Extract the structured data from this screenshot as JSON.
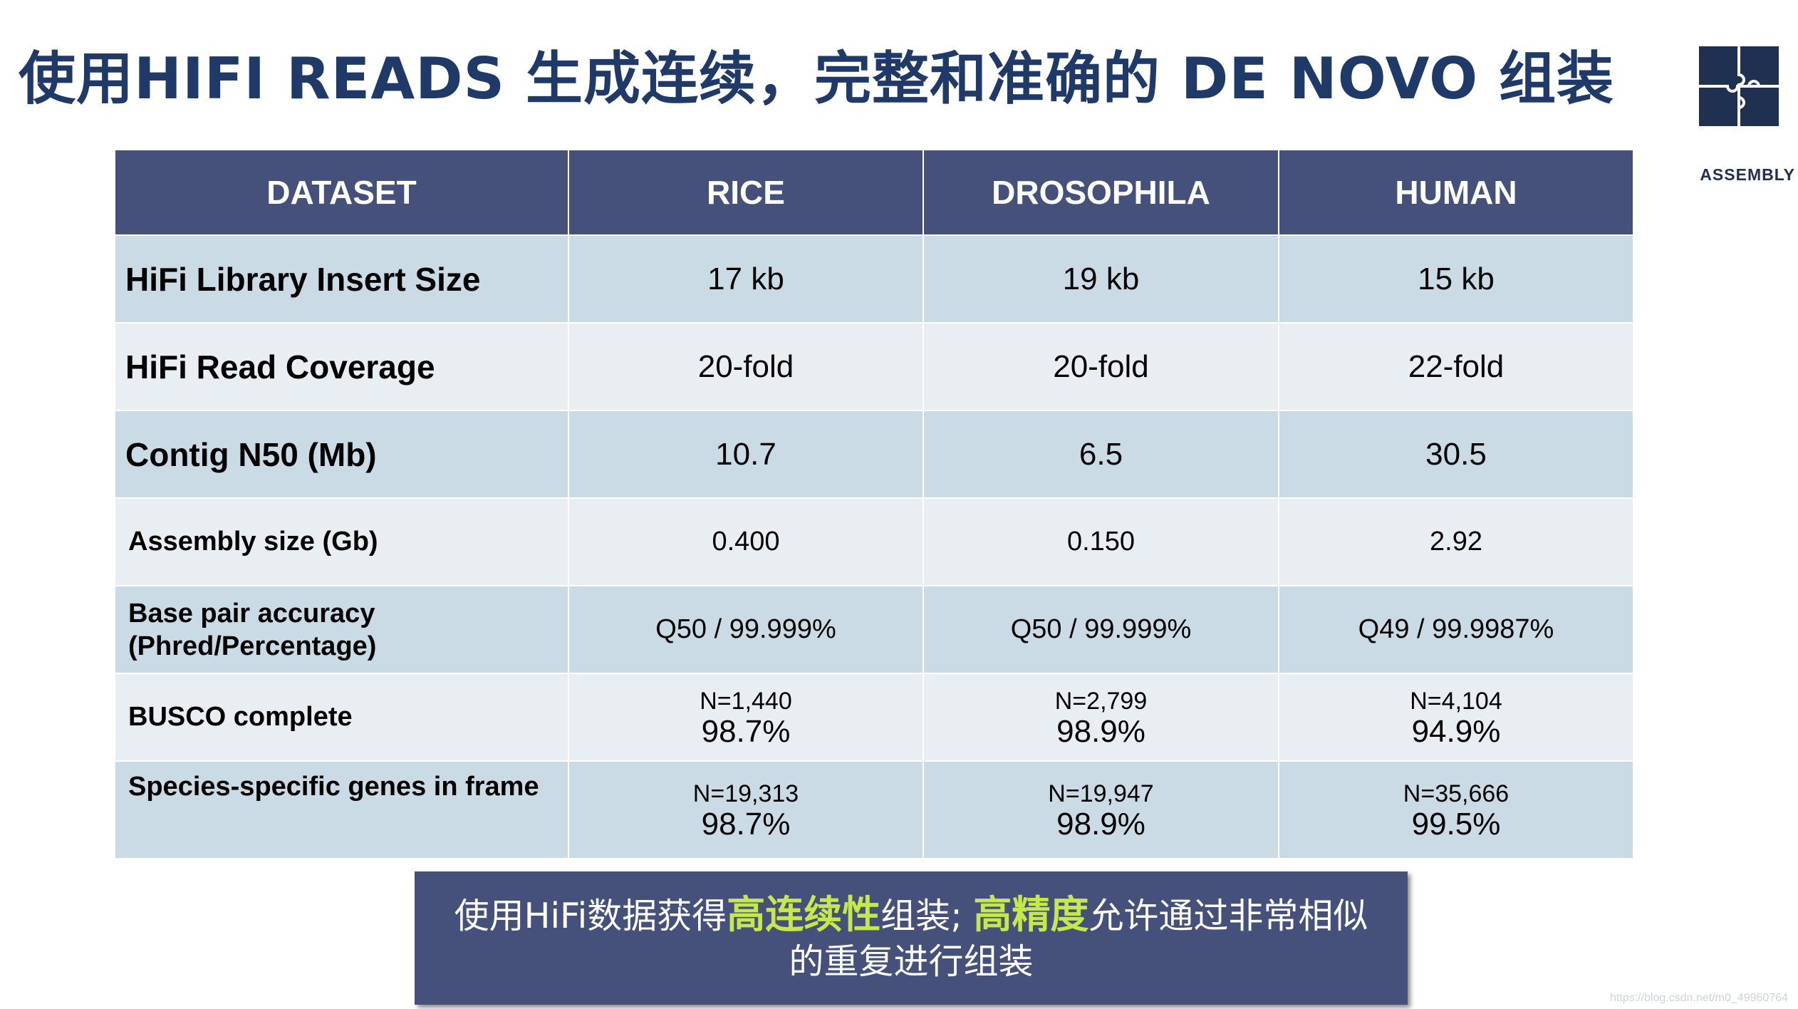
{
  "title": "使用HIFI READS 生成连续，完整和准确的 DE NOVO 组装",
  "badge": {
    "label": "ASSEMBLY",
    "icon": "puzzle-icon",
    "color": "#1f3050"
  },
  "colors": {
    "header": "#45517b",
    "row_odd": "#cbdbe6",
    "row_even": "#e9eef3",
    "title": "#1f3a68",
    "highlight": "#c5e84a"
  },
  "table": {
    "headers": [
      "DATASET",
      "RICE",
      "DROSOPHILA",
      "HUMAN"
    ],
    "rows": [
      {
        "label": "HiFi Library Insert Size",
        "values": [
          "17 kb",
          "19 kb",
          "15 kb"
        ]
      },
      {
        "label": "HiFi Read Coverage",
        "values": [
          "20-fold",
          "20-fold",
          "22-fold"
        ]
      },
      {
        "label": "Contig N50 (Mb)",
        "values": [
          "10.7",
          "6.5",
          "30.5"
        ]
      },
      {
        "label": "Assembly size (Gb)",
        "values": [
          "0.400",
          "0.150",
          "2.92"
        ]
      },
      {
        "label_line1": "Base pair accuracy",
        "label_line2": "(Phred/Percentage)",
        "values": [
          "Q50 / 99.999%",
          "Q50 / 99.999%",
          "Q49 / 99.9987%"
        ]
      },
      {
        "label": "BUSCO complete",
        "values": [
          {
            "n": "N=1,440",
            "pct": "98.7%"
          },
          {
            "n": "N=2,799",
            "pct": "98.9%"
          },
          {
            "n": "N=4,104",
            "pct": "94.9%"
          }
        ]
      },
      {
        "label": "Species-specific genes in  frame",
        "values": [
          {
            "n": "N=19,313",
            "pct": "98.7%"
          },
          {
            "n": "N=19,947",
            "pct": "98.9%"
          },
          {
            "n": "N=35,666",
            "pct": "99.5%"
          }
        ]
      }
    ]
  },
  "callout": {
    "part1": "使用HiFi数据获得",
    "highlight1": "高连续性",
    "part2": "组装; ",
    "highlight2": "高精度",
    "part3": "允许通过非常相似",
    "line2": "的重复进行组装"
  },
  "watermark": "https://blog.csdn.net/m0_49960764"
}
